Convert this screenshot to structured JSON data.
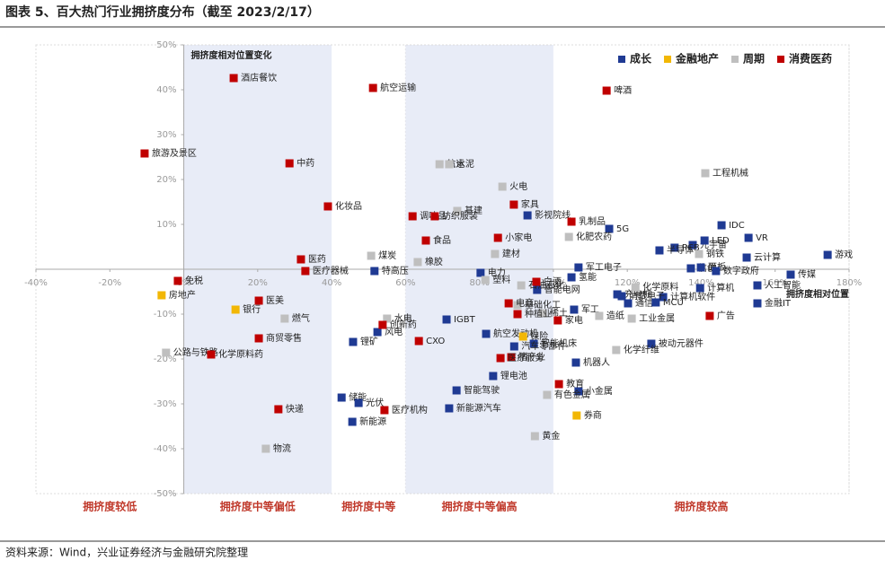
{
  "chart_data": {
    "type": "scatter",
    "title": "图表 5、百大热门行业拥挤度分布（截至 2023/2/17）",
    "source": "资料来源：Wind，兴业证券经济与金融研究院整理",
    "y_annotation": "拥挤度相对位置变化",
    "x_annotation": "拥挤度相对位置",
    "xlim": [
      -40,
      180
    ],
    "ylim": [
      -50,
      50
    ],
    "xticks": [
      {
        "value": -40,
        "label": "-40%"
      },
      {
        "value": -20,
        "label": "-20%"
      },
      {
        "value": 0,
        "label": "0%"
      },
      {
        "value": 20,
        "label": "20%"
      },
      {
        "value": 40,
        "label": "40%"
      },
      {
        "value": 60,
        "label": "60%"
      },
      {
        "value": 80,
        "label": "80%"
      },
      {
        "value": 100,
        "label": "100%"
      },
      {
        "value": 120,
        "label": "120%"
      },
      {
        "value": 140,
        "label": "140%"
      },
      {
        "value": 160,
        "label": "160%"
      },
      {
        "value": 180,
        "label": "180%"
      }
    ],
    "yticks": [
      {
        "value": -50,
        "label": "-50%"
      },
      {
        "value": -40,
        "label": "-40%"
      },
      {
        "value": -30,
        "label": "-30%"
      },
      {
        "value": -20,
        "label": "-20%"
      },
      {
        "value": -10,
        "label": "-10%"
      },
      {
        "value": 10,
        "label": "10%"
      },
      {
        "value": 20,
        "label": "20%"
      },
      {
        "value": 30,
        "label": "30%"
      },
      {
        "value": 40,
        "label": "40%"
      },
      {
        "value": 50,
        "label": "50%"
      }
    ],
    "zones": [
      {
        "label": "拥挤度较低",
        "range": [
          -40,
          0
        ],
        "shaded": false
      },
      {
        "label": "拥挤度中等偏低",
        "range": [
          0,
          40
        ],
        "shaded": true
      },
      {
        "label": "拥挤度中等",
        "range": [
          40,
          60
        ],
        "shaded": false
      },
      {
        "label": "拥挤度中等偏高",
        "range": [
          60,
          100
        ],
        "shaded": true
      },
      {
        "label": "拥挤度较高",
        "range": [
          100,
          180
        ],
        "shaded": false
      }
    ],
    "legend": "top-right",
    "series": [
      {
        "name": "成长",
        "color": "#1f3a93",
        "labels": [
          "影视院线",
          "5G",
          "元宇宙",
          "PCB",
          "半导体",
          "IDC",
          "LED",
          "VR",
          "游戏",
          "云计算",
          "信创",
          "面板",
          "数字政府",
          "传媒",
          "军工电子",
          "电力",
          "特高压",
          "氢能",
          "智能电网",
          "充电桩",
          "计算机",
          "计算机软件",
          "人工智能",
          "金融IT",
          "消费电子",
          "通信",
          "MCU",
          "军工",
          "IGBT",
          "风电",
          "锂矿",
          "航空发动机",
          "智能机床",
          "机器人",
          "被动元器件",
          "锂电池",
          "智能驾驶",
          "小金属",
          "储能",
          "光伏",
          "新能源汽车",
          "新能源",
          "汽车零部件"
        ],
        "x": [
          93,
          115.1,
          137.7,
          132.8,
          128.7,
          145.5,
          140.9,
          152.8,
          174.2,
          152.3,
          137.2,
          139.9,
          144,
          164.2,
          106.8,
          80.3,
          51.6,
          104.9,
          95.6,
          117.3,
          139.7,
          129.7,
          155.2,
          155.2,
          118.5,
          120.2,
          127.7,
          105.6,
          71.1,
          52.4,
          45.8,
          81.8,
          94.7,
          106.1,
          126.5,
          83.7,
          73.8,
          106.8,
          42.7,
          47.3,
          71.8,
          45.6,
          89.4
        ],
        "y": [
          12,
          9,
          5.4,
          4.8,
          4.2,
          9.8,
          6.4,
          7,
          3.2,
          2.6,
          0.2,
          0.4,
          -0.4,
          -1.2,
          0.4,
          -0.8,
          -0.4,
          -1.8,
          -4.6,
          -5.6,
          -4.2,
          -6.2,
          -3.6,
          -7.6,
          -6,
          -7.6,
          -7.4,
          -9,
          -11.2,
          -14,
          -16.2,
          -14.4,
          -16.6,
          -20.8,
          -16.6,
          -23.8,
          -27,
          -27.2,
          -28.6,
          -29.8,
          -31,
          -34,
          -17.2
        ]
      },
      {
        "name": "金融地产",
        "color": "#f2b705",
        "labels": [
          "房地产",
          "银行",
          "保险",
          "券商"
        ],
        "x": [
          -6,
          14,
          91.8,
          106.3
        ],
        "y": [
          -5.8,
          -9,
          -15,
          -32.6
        ]
      },
      {
        "name": "周期",
        "color": "#bfbfbf",
        "labels": [
          "航运",
          "水泥",
          "工程机械",
          "火电",
          "基建",
          "化肥农药",
          "煤炭",
          "橡胶",
          "建材",
          "钢铁",
          "塑料",
          "石油石化",
          "基础化工",
          "稀土",
          "燃气",
          "水电",
          "造纸",
          "化学原料",
          "工业金属",
          "化学纤维",
          "有色金属",
          "黄金",
          "物流",
          "公路与铁路"
        ],
        "x": [
          69.2,
          71.8,
          141.1,
          86.2,
          74,
          104.2,
          50.7,
          63.3,
          84.2,
          139.4,
          81.6,
          91.3,
          90.3,
          97.1,
          27.3,
          55,
          112.4,
          122.2,
          121.2,
          117,
          98.3,
          95,
          22.2,
          -4.8
        ],
        "y": [
          23.4,
          23.4,
          21.4,
          18.4,
          13,
          7.2,
          3,
          1.6,
          3.4,
          3.4,
          -2.4,
          -3.6,
          -8,
          -9.8,
          -11,
          -11,
          -10.4,
          -4,
          -11,
          -18,
          -28,
          -37.2,
          -40,
          -18.6
        ]
      },
      {
        "name": "消费医药",
        "color": "#c00000",
        "labels": [
          "酒店餐饮",
          "航空运输",
          "啤酒",
          "旅游及景区",
          "中药",
          "化妆品",
          "调味品",
          "纺织服装",
          "家具",
          "乳制品",
          "食品",
          "小家电",
          "医药",
          "医疗器械",
          "免税",
          "医美",
          "白酒",
          "电商",
          "种植业",
          "家电",
          "广告",
          "商贸零售",
          "化学原料药",
          "CXO",
          "创新药",
          "猪产业",
          "医疗服务",
          "教育",
          "快递",
          "医疗机构"
        ],
        "x": [
          13.5,
          51.2,
          114.4,
          -10.6,
          28.6,
          39,
          61.9,
          67.9,
          89.3,
          104.9,
          65.5,
          85,
          31.7,
          32.9,
          -1.6,
          20.3,
          95.4,
          87.9,
          90.3,
          101.2,
          142.3,
          20.3,
          7.4,
          63.6,
          53.8,
          88.6,
          85.7,
          101.5,
          25.6,
          54.3
        ],
        "y": [
          42.6,
          40.4,
          39.8,
          25.8,
          23.6,
          14,
          11.8,
          11.8,
          14.4,
          10.6,
          6.4,
          7,
          2.2,
          -0.4,
          -2.6,
          -7,
          -2.8,
          -7.6,
          -10,
          -11.4,
          -10.4,
          -15.4,
          -19,
          -16,
          -12.4,
          -19.6,
          -19.8,
          -25.6,
          -31.2,
          -31.4
        ]
      }
    ]
  }
}
